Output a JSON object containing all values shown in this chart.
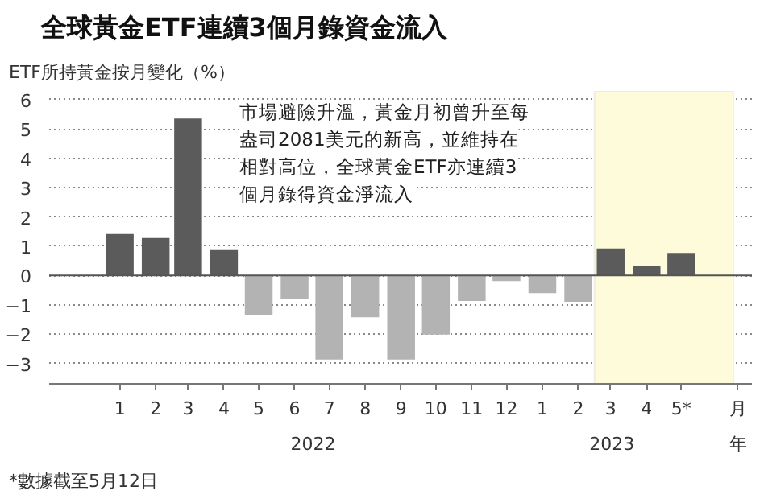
{
  "chart_data": {
    "type": "bar",
    "title": "全球黃金ETF連續3個月錄資金流入",
    "ylabel": "ETF所持黃金按月變化（%）",
    "x": [
      "2022-01",
      "2022-02",
      "2022-03",
      "2022-04",
      "2022-05",
      "2022-06",
      "2022-07",
      "2022-08",
      "2022-09",
      "2022-10",
      "2022-11",
      "2022-12",
      "2023-01",
      "2023-02",
      "2023-03",
      "2023-04",
      "2023-05"
    ],
    "values": [
      1.42,
      1.28,
      5.36,
      0.87,
      -1.36,
      -0.81,
      -2.87,
      -1.43,
      -2.87,
      -2.02,
      -0.87,
      -0.19,
      -0.6,
      -0.9,
      0.92,
      0.34,
      0.77
    ],
    "colors": [
      "#5b5b5b",
      "#5b5b5b",
      "#5b5b5b",
      "#5b5b5b",
      "#b3b3b3",
      "#b3b3b3",
      "#b3b3b3",
      "#b3b3b3",
      "#b3b3b3",
      "#b3b3b3",
      "#b3b3b3",
      "#b3b3b3",
      "#b3b3b3",
      "#b3b3b3",
      "#5b5b5b",
      "#5b5b5b",
      "#5b5b5b"
    ],
    "xlim": [
      "2021-11-01",
      "2023-07-01"
    ],
    "xticks": [
      {
        "value": "2022-01",
        "label": "1"
      },
      {
        "value": "2022-02",
        "label": "2"
      },
      {
        "value": "2022-03",
        "label": "3"
      },
      {
        "value": "2022-04",
        "label": "4"
      },
      {
        "value": "2022-05",
        "label": "5"
      },
      {
        "value": "2022-06",
        "label": "6"
      },
      {
        "value": "2022-07",
        "label": "7"
      },
      {
        "value": "2022-08",
        "label": "8"
      },
      {
        "value": "2022-09",
        "label": "9"
      },
      {
        "value": "2022-10",
        "label": "10"
      },
      {
        "value": "2022-11",
        "label": "11"
      },
      {
        "value": "2022-12",
        "label": "12"
      },
      {
        "value": "2023-01",
        "label": "1"
      },
      {
        "value": "2023-02",
        "label": "2"
      },
      {
        "value": "2023-03",
        "label": "3"
      },
      {
        "value": "2023-04",
        "label": "4"
      },
      {
        "value": "2023-05",
        "label": "5*"
      }
    ],
    "ylim": [
      -3.7,
      6.3
    ],
    "yticks": [
      -3,
      -2,
      -1,
      0,
      1,
      2,
      3,
      4,
      5,
      6
    ],
    "grid": "y",
    "bands": [
      {
        "axis": "x",
        "from": "2023-02-15",
        "to": "2023-06-15",
        "color": "#fdfbd9"
      }
    ],
    "annotations": [
      "2022",
      "2023",
      "月",
      "年",
      "市場避險升溫，黃金月初曾升至每盎司2081美元的新高，並維持在相對高位，全球黃金ETF亦連續3個月錄得資金淨流入",
      "*數據截至5月12日"
    ]
  }
}
